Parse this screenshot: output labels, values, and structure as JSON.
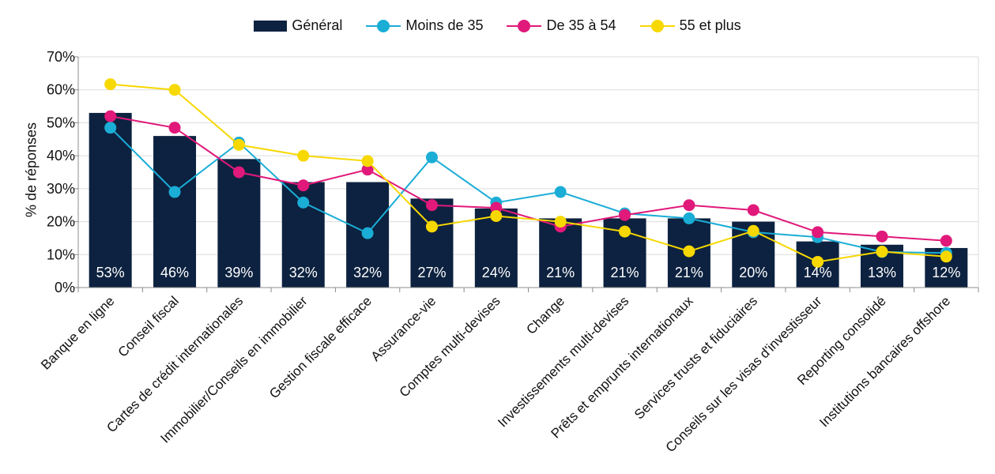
{
  "chart_data": {
    "type": "bar",
    "ylabel": "% de réponses",
    "ylim": [
      0,
      70
    ],
    "yticks": [
      "0%",
      "10%",
      "20%",
      "30%",
      "40%",
      "50%",
      "60%",
      "70%"
    ],
    "grid": true,
    "legend_position": "top",
    "categories": [
      "Banque en ligne",
      "Conseil fiscal",
      "Cartes de crédit internationales",
      "Immobilier/Conseils en immobilier",
      "Gestion fiscale efficace",
      "Assurance-vie",
      "Comptes multi-devises",
      "Change",
      "Investissements multi-devises",
      "Prêts et emprunts internationaux",
      "Services trusts et fiduciaires",
      "Conseils sur les visas d'investisseur",
      "Reporting consolidé",
      "Institutions bancaires offshore"
    ],
    "bar_series": {
      "name": "Général",
      "color": "#0d2240",
      "values": [
        53,
        46,
        39,
        32,
        32,
        27,
        24,
        21,
        21,
        21,
        20,
        14,
        13,
        12
      ],
      "labels": [
        "53%",
        "46%",
        "39%",
        "32%",
        "32%",
        "27%",
        "24%",
        "21%",
        "21%",
        "21%",
        "20%",
        "14%",
        "13%",
        "12%"
      ]
    },
    "line_series": [
      {
        "name": "Moins de 35",
        "color": "#1aadd6",
        "values": [
          48.5,
          29,
          44,
          25.8,
          16.5,
          39.5,
          25.8,
          29,
          22.5,
          21,
          16.8,
          15.3,
          10.8,
          10.5
        ]
      },
      {
        "name": "De 35 à 54",
        "color": "#e0197a",
        "values": [
          52,
          48.5,
          35,
          31,
          35.8,
          25,
          24.2,
          18.5,
          22,
          25,
          23.5,
          16.8,
          15.5,
          14.2
        ]
      },
      {
        "name": "55 et plus",
        "color": "#f7d800",
        "values": [
          61.7,
          60,
          43.3,
          40,
          38.4,
          18.5,
          21.7,
          20,
          17,
          11,
          17.2,
          7.8,
          10.9,
          9.4
        ]
      }
    ]
  }
}
